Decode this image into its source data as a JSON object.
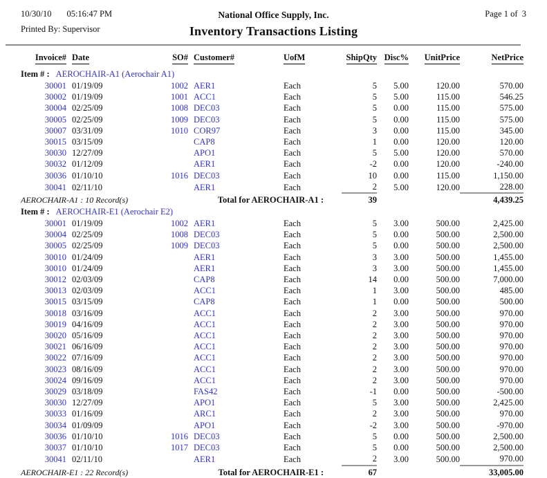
{
  "header": {
    "date": "10/30/10",
    "time": "05:16:47 PM",
    "printed_by_label": "Printed By:",
    "printed_by_value": "Supervisor",
    "company": "National Office Supply, Inc.",
    "page_number": "Page 1 of  3",
    "title": "Inventory Transactions Listing"
  },
  "columns": [
    "Invoice#",
    "Date",
    "SO#",
    "Customer#",
    "UofM",
    "ShipQty",
    "Disc%",
    "UnitPrice",
    "NetPrice"
  ],
  "item_label": "Item # :",
  "colors": {
    "link_blue": "#3333cc",
    "text": "#111111",
    "rule_gray": "#8c8c8c",
    "sum_line_gray": "#999999"
  },
  "groups": [
    {
      "item": "AEROCHAIR-A1 (Aerochair A1)",
      "rows": [
        {
          "invoice": "30001",
          "date": "01/19/09",
          "so": "1002",
          "customer": "AER1",
          "uofm": "Each",
          "qty": "5",
          "disc": "5.00",
          "unit": "120.00",
          "net": "570.00"
        },
        {
          "invoice": "30002",
          "date": "01/19/09",
          "so": "1001",
          "customer": "ACC1",
          "uofm": "Each",
          "qty": "5",
          "disc": "5.00",
          "unit": "115.00",
          "net": "546.25"
        },
        {
          "invoice": "30004",
          "date": "02/25/09",
          "so": "1008",
          "customer": "DEC03",
          "uofm": "Each",
          "qty": "5",
          "disc": "0.00",
          "unit": "115.00",
          "net": "575.00"
        },
        {
          "invoice": "30005",
          "date": "02/25/09",
          "so": "1009",
          "customer": "DEC03",
          "uofm": "Each",
          "qty": "5",
          "disc": "0.00",
          "unit": "115.00",
          "net": "575.00"
        },
        {
          "invoice": "30007",
          "date": "03/31/09",
          "so": "1010",
          "customer": "COR97",
          "uofm": "Each",
          "qty": "3",
          "disc": "0.00",
          "unit": "115.00",
          "net": "345.00"
        },
        {
          "invoice": "30015",
          "date": "03/15/09",
          "so": "",
          "customer": "CAP8",
          "uofm": "Each",
          "qty": "1",
          "disc": "0.00",
          "unit": "120.00",
          "net": "120.00"
        },
        {
          "invoice": "30030",
          "date": "12/27/09",
          "so": "",
          "customer": "APO1",
          "uofm": "Each",
          "qty": "5",
          "disc": "5.00",
          "unit": "120.00",
          "net": "570.00"
        },
        {
          "invoice": "30032",
          "date": "01/12/09",
          "so": "",
          "customer": "AER1",
          "uofm": "Each",
          "qty": "-2",
          "disc": "0.00",
          "unit": "120.00",
          "net": "-240.00"
        },
        {
          "invoice": "30036",
          "date": "01/10/10",
          "so": "1016",
          "customer": "DEC03",
          "uofm": "Each",
          "qty": "10",
          "disc": "0.00",
          "unit": "115.00",
          "net": "1,150.00"
        },
        {
          "invoice": "30041",
          "date": "02/11/10",
          "so": "",
          "customer": "AER1",
          "uofm": "Each",
          "qty": "2",
          "disc": "5.00",
          "unit": "120.00",
          "net": "228.00"
        }
      ],
      "records_note": "AEROCHAIR-A1 : 10 Record(s)",
      "total_label": "Total for AEROCHAIR-A1 :",
      "total_qty": "39",
      "total_net": "4,439.25"
    },
    {
      "item": "AEROCHAIR-E1 (Aerochair E2)",
      "rows": [
        {
          "invoice": "30001",
          "date": "01/19/09",
          "so": "1002",
          "customer": "AER1",
          "uofm": "Each",
          "qty": "5",
          "disc": "3.00",
          "unit": "500.00",
          "net": "2,425.00"
        },
        {
          "invoice": "30004",
          "date": "02/25/09",
          "so": "1008",
          "customer": "DEC03",
          "uofm": "Each",
          "qty": "5",
          "disc": "0.00",
          "unit": "500.00",
          "net": "2,500.00"
        },
        {
          "invoice": "30005",
          "date": "02/25/09",
          "so": "1009",
          "customer": "DEC03",
          "uofm": "Each",
          "qty": "5",
          "disc": "0.00",
          "unit": "500.00",
          "net": "2,500.00"
        },
        {
          "invoice": "30010",
          "date": "01/24/09",
          "so": "",
          "customer": "AER1",
          "uofm": "Each",
          "qty": "3",
          "disc": "3.00",
          "unit": "500.00",
          "net": "1,455.00"
        },
        {
          "invoice": "30010",
          "date": "01/24/09",
          "so": "",
          "customer": "AER1",
          "uofm": "Each",
          "qty": "3",
          "disc": "3.00",
          "unit": "500.00",
          "net": "1,455.00"
        },
        {
          "invoice": "30012",
          "date": "02/03/09",
          "so": "",
          "customer": "CAP8",
          "uofm": "Each",
          "qty": "14",
          "disc": "0.00",
          "unit": "500.00",
          "net": "7,000.00"
        },
        {
          "invoice": "30013",
          "date": "02/03/09",
          "so": "",
          "customer": "ACC1",
          "uofm": "Each",
          "qty": "1",
          "disc": "3.00",
          "unit": "500.00",
          "net": "485.00"
        },
        {
          "invoice": "30015",
          "date": "03/15/09",
          "so": "",
          "customer": "CAP8",
          "uofm": "Each",
          "qty": "1",
          "disc": "0.00",
          "unit": "500.00",
          "net": "500.00"
        },
        {
          "invoice": "30018",
          "date": "03/16/09",
          "so": "",
          "customer": "ACC1",
          "uofm": "Each",
          "qty": "2",
          "disc": "3.00",
          "unit": "500.00",
          "net": "970.00"
        },
        {
          "invoice": "30019",
          "date": "04/16/09",
          "so": "",
          "customer": "ACC1",
          "uofm": "Each",
          "qty": "2",
          "disc": "3.00",
          "unit": "500.00",
          "net": "970.00"
        },
        {
          "invoice": "30020",
          "date": "05/16/09",
          "so": "",
          "customer": "ACC1",
          "uofm": "Each",
          "qty": "2",
          "disc": "3.00",
          "unit": "500.00",
          "net": "970.00"
        },
        {
          "invoice": "30021",
          "date": "06/16/09",
          "so": "",
          "customer": "ACC1",
          "uofm": "Each",
          "qty": "2",
          "disc": "3.00",
          "unit": "500.00",
          "net": "970.00"
        },
        {
          "invoice": "30022",
          "date": "07/16/09",
          "so": "",
          "customer": "ACC1",
          "uofm": "Each",
          "qty": "2",
          "disc": "3.00",
          "unit": "500.00",
          "net": "970.00"
        },
        {
          "invoice": "30023",
          "date": "08/16/09",
          "so": "",
          "customer": "ACC1",
          "uofm": "Each",
          "qty": "2",
          "disc": "3.00",
          "unit": "500.00",
          "net": "970.00"
        },
        {
          "invoice": "30024",
          "date": "09/16/09",
          "so": "",
          "customer": "ACC1",
          "uofm": "Each",
          "qty": "2",
          "disc": "3.00",
          "unit": "500.00",
          "net": "970.00"
        },
        {
          "invoice": "30029",
          "date": "03/18/09",
          "so": "",
          "customer": "FAS42",
          "uofm": "Each",
          "qty": "-1",
          "disc": "0.00",
          "unit": "500.00",
          "net": "-500.00"
        },
        {
          "invoice": "30030",
          "date": "12/27/09",
          "so": "",
          "customer": "APO1",
          "uofm": "Each",
          "qty": "5",
          "disc": "3.00",
          "unit": "500.00",
          "net": "2,425.00"
        },
        {
          "invoice": "30033",
          "date": "01/16/09",
          "so": "",
          "customer": "ARC1",
          "uofm": "Each",
          "qty": "2",
          "disc": "3.00",
          "unit": "500.00",
          "net": "970.00"
        },
        {
          "invoice": "30034",
          "date": "01/09/09",
          "so": "",
          "customer": "APO1",
          "uofm": "Each",
          "qty": "-2",
          "disc": "3.00",
          "unit": "500.00",
          "net": "-970.00"
        },
        {
          "invoice": "30036",
          "date": "01/10/10",
          "so": "1016",
          "customer": "DEC03",
          "uofm": "Each",
          "qty": "5",
          "disc": "0.00",
          "unit": "500.00",
          "net": "2,500.00"
        },
        {
          "invoice": "30037",
          "date": "01/10/10",
          "so": "1017",
          "customer": "DEC03",
          "uofm": "Each",
          "qty": "5",
          "disc": "0.00",
          "unit": "500.00",
          "net": "2,500.00"
        },
        {
          "invoice": "30041",
          "date": "02/11/10",
          "so": "",
          "customer": "AER1",
          "uofm": "Each",
          "qty": "2",
          "disc": "3.00",
          "unit": "500.00",
          "net": "970.00"
        }
      ],
      "records_note": "AEROCHAIR-E1 : 22 Record(s)",
      "total_label": "Total for AEROCHAIR-E1 :",
      "total_qty": "67",
      "total_net": "33,005.00"
    }
  ]
}
